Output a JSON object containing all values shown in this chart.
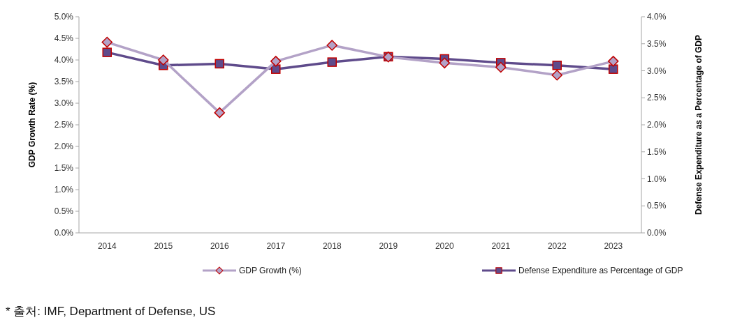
{
  "chart_data": {
    "type": "line",
    "ylabel": "GDP Growth Rate (%)",
    "y2label": "Defense Expenditure as a Percentage of GDP",
    "categories": [
      "2014",
      "2015",
      "2016",
      "2017",
      "2018",
      "2019",
      "2020",
      "2021",
      "2022",
      "2023"
    ],
    "series": [
      {
        "name": "GDP Growth (%)",
        "color": "#b3a2c7",
        "marker": "diamond",
        "values": [
          4.41,
          4.0,
          2.78,
          3.97,
          4.34,
          4.07,
          3.93,
          3.83,
          3.65,
          3.97
        ]
      },
      {
        "name": "Defense Expenditure as  Percentage of GDP",
        "color": "#5f4b8b",
        "marker": "square",
        "axis": "y2",
        "values": [
          3.34,
          3.1,
          3.13,
          3.03,
          3.16,
          3.26,
          3.22,
          3.15,
          3.1,
          3.03
        ]
      }
    ],
    "ylim": [
      0,
      5
    ],
    "yticks": [
      {
        "value": 0,
        "label": "0.0%"
      },
      {
        "value": 0.5,
        "label": "0.5%"
      },
      {
        "value": 1,
        "label": "1.0%"
      },
      {
        "value": 1.5,
        "label": "1.5%"
      },
      {
        "value": 2,
        "label": "2.0%"
      },
      {
        "value": 2.5,
        "label": "2.5%"
      },
      {
        "value": 3,
        "label": "3.0%"
      },
      {
        "value": 3.5,
        "label": "3.5%"
      },
      {
        "value": 4,
        "label": "4.0%"
      },
      {
        "value": 4.5,
        "label": "4.5%"
      },
      {
        "value": 5,
        "label": "5.0%"
      }
    ],
    "y2lim": [
      0,
      4
    ],
    "y2ticks": [
      {
        "value": 0,
        "label": "0.0%"
      },
      {
        "value": 0.5,
        "label": "0.5%"
      },
      {
        "value": 1,
        "label": "1.0%"
      },
      {
        "value": 1.5,
        "label": "1.5%"
      },
      {
        "value": 2,
        "label": "2.0%"
      },
      {
        "value": 2.5,
        "label": "2.5%"
      },
      {
        "value": 3,
        "label": "3.0%"
      },
      {
        "value": 3.5,
        "label": "3.5%"
      },
      {
        "value": 4,
        "label": "4.0%"
      }
    ],
    "legend": "bottom",
    "grid": false,
    "annotations": [
      "* 출처: IMF, Department of Defense, US"
    ]
  }
}
